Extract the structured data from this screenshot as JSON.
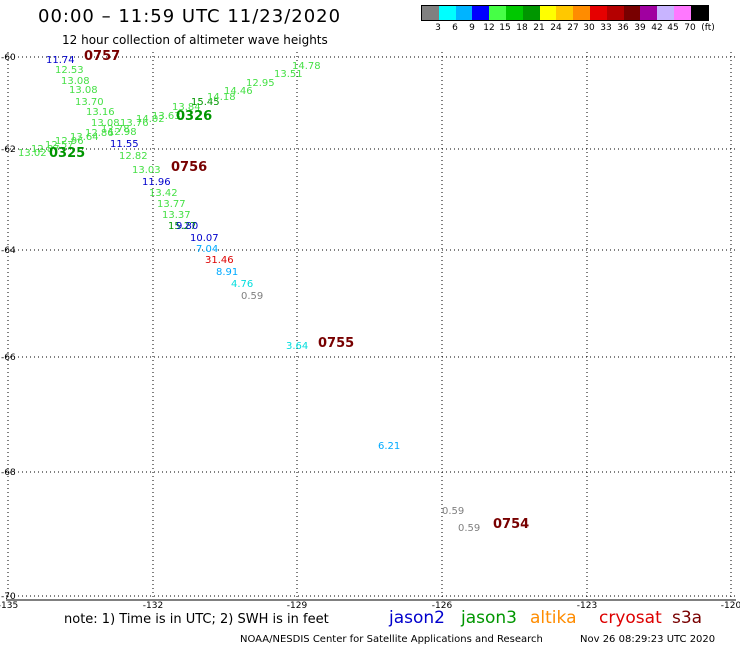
{
  "header": {
    "title": "00:00 – 11:59 UTC 11/23/2020",
    "subtitle": "12 hour collection of altimeter wave heights"
  },
  "legend": {
    "colors": [
      "#808080",
      "#00ffff",
      "#00b4ff",
      "#0000ff",
      "#46ff46",
      "#00c800",
      "#009600",
      "#ffff00",
      "#ffc800",
      "#ff8c00",
      "#e60000",
      "#b40000",
      "#780000",
      "#a000a0",
      "#c8b4ff",
      "#ff78ff",
      "#000000"
    ],
    "labels": [
      "3",
      "6",
      "9",
      "12",
      "15",
      "18",
      "21",
      "24",
      "27",
      "30",
      "33",
      "36",
      "39",
      "42",
      "45",
      "70",
      "(ft)"
    ]
  },
  "axes": {
    "x_ticks": [
      "-135",
      "-132",
      "-129",
      "-126",
      "-123",
      "-120"
    ],
    "y_ticks": [
      "-60",
      "-62",
      "-64",
      "-66",
      "-68",
      "-70"
    ]
  },
  "observations": [
    {
      "value": "11.74",
      "color": "#0000cc"
    },
    {
      "value": "12.53",
      "color": "#46e046"
    },
    {
      "value": "13.08",
      "color": "#46e046"
    },
    {
      "value": "13.08",
      "color": "#46e046"
    },
    {
      "value": "13.70",
      "color": "#46e046"
    },
    {
      "value": "13.16",
      "color": "#46e046"
    },
    {
      "value": "13.08",
      "color": "#46e046"
    },
    {
      "value": "12.78",
      "color": "#46e046"
    },
    {
      "value": "12.98",
      "color": "#46e046"
    },
    {
      "value": "12.86",
      "color": "#46e046"
    },
    {
      "value": "13.64",
      "color": "#46e046"
    },
    {
      "value": "12.96",
      "color": "#46e046"
    },
    {
      "value": "12.57",
      "color": "#46e046"
    },
    {
      "value": "12.87",
      "color": "#46e046"
    },
    {
      "value": "13.02",
      "color": "#46e046"
    },
    {
      "value": "13.76",
      "color": "#46e046"
    },
    {
      "value": "14.02",
      "color": "#46e046"
    },
    {
      "value": "13.63",
      "color": "#46e046"
    },
    {
      "value": "13.84",
      "color": "#46e046"
    },
    {
      "value": "15.45",
      "color": "#009600"
    },
    {
      "value": "14.18",
      "color": "#46e046"
    },
    {
      "value": "14.46",
      "color": "#46e046"
    },
    {
      "value": "12.95",
      "color": "#46e046"
    },
    {
      "value": "13.51",
      "color": "#46e046"
    },
    {
      "value": "14.78",
      "color": "#46e046"
    },
    {
      "value": "11.55",
      "color": "#0000cc"
    },
    {
      "value": "12.82",
      "color": "#46e046"
    },
    {
      "value": "13.03",
      "color": "#46e046"
    },
    {
      "value": "11.96",
      "color": "#0000cc"
    },
    {
      "value": "13.42",
      "color": "#46e046"
    },
    {
      "value": "13.77",
      "color": "#46e046"
    },
    {
      "value": "13.37",
      "color": "#46e046"
    },
    {
      "value": "15.27",
      "color": "#009600"
    },
    {
      "value": "9.80",
      "color": "#0000cc"
    },
    {
      "value": "10.07",
      "color": "#0000cc"
    },
    {
      "value": "7.04",
      "color": "#00aaff"
    },
    {
      "value": "31.46",
      "color": "#dd0000"
    },
    {
      "value": "8.91",
      "color": "#00aaff"
    },
    {
      "value": "4.76",
      "color": "#00dddd"
    },
    {
      "value": "0.59",
      "color": "#808080"
    },
    {
      "value": "3.64",
      "color": "#00dddd"
    },
    {
      "value": "6.21",
      "color": "#00aaff"
    },
    {
      "value": "0.59",
      "color": "#808080"
    },
    {
      "value": "0.59",
      "color": "#808080"
    }
  ],
  "time_labels": [
    {
      "value": "0757",
      "color": "#780000"
    },
    {
      "value": "0326",
      "color": "#009600"
    },
    {
      "value": "0325",
      "color": "#009600"
    },
    {
      "value": "0756",
      "color": "#780000"
    },
    {
      "value": "0755",
      "color": "#780000"
    },
    {
      "value": "0754",
      "color": "#780000"
    }
  ],
  "footer": {
    "note": "note: 1) Time is in UTC; 2) SWH is in feet",
    "satellites": [
      {
        "name": "jason2",
        "color": "#0000cc"
      },
      {
        "name": "jason3",
        "color": "#009600"
      },
      {
        "name": "altika",
        "color": "#ff8c00"
      },
      {
        "name": "cryosat",
        "color": "#dd0000"
      },
      {
        "name": "s3a",
        "color": "#780000"
      }
    ],
    "credit": "NOAA/NESDIS Center for Satellite Applications and Research",
    "timestamp": "Nov 26 08:29:23 UTC 2020"
  }
}
